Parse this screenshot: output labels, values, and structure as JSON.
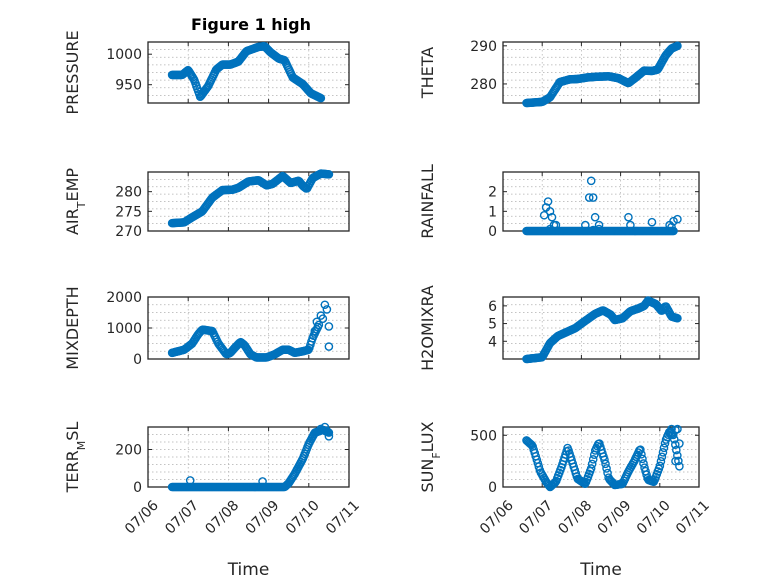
{
  "figure_title": "Figure 1 high",
  "x_tick_labels": [
    "07/06",
    "07/07",
    "07/08",
    "07/09",
    "07/10",
    "07/11"
  ],
  "xlabel": "Time",
  "marker_color": "#0072bd",
  "chart_data": [
    {
      "type": "scatter",
      "ylabel": "PRESSURE",
      "ylim": [
        920,
        1020
      ],
      "yticks": [
        950,
        1000
      ],
      "grid": true,
      "knots": [
        [
          6.6,
          966
        ],
        [
          6.85,
          966
        ],
        [
          7.0,
          974
        ],
        [
          7.15,
          958
        ],
        [
          7.3,
          930
        ],
        [
          7.5,
          948
        ],
        [
          7.7,
          975
        ],
        [
          7.85,
          983
        ],
        [
          8.05,
          983
        ],
        [
          8.25,
          988
        ],
        [
          8.45,
          1005
        ],
        [
          8.75,
          1012
        ],
        [
          8.9,
          1013
        ],
        [
          9.05,
          1003
        ],
        [
          9.25,
          993
        ],
        [
          9.4,
          990
        ],
        [
          9.6,
          962
        ],
        [
          9.85,
          951
        ],
        [
          10.05,
          936
        ],
        [
          10.3,
          928
        ]
      ],
      "n": 160
    },
    {
      "type": "scatter",
      "ylabel": "THETA",
      "ylim": [
        275,
        291
      ],
      "yticks": [
        280,
        290
      ],
      "grid": true,
      "knots": [
        [
          6.6,
          275
        ],
        [
          7.0,
          275.3
        ],
        [
          7.2,
          276.5
        ],
        [
          7.45,
          280.5
        ],
        [
          7.7,
          281.2
        ],
        [
          7.9,
          281.3
        ],
        [
          8.15,
          281.7
        ],
        [
          8.4,
          281.9
        ],
        [
          8.7,
          282
        ],
        [
          8.95,
          281.5
        ],
        [
          9.2,
          280.2
        ],
        [
          9.4,
          281.8
        ],
        [
          9.6,
          283.5
        ],
        [
          9.8,
          283.4
        ],
        [
          9.95,
          283.8
        ],
        [
          10.15,
          287.5
        ],
        [
          10.3,
          289.3
        ],
        [
          10.45,
          290
        ]
      ],
      "n": 160
    },
    {
      "type": "scatter",
      "ylabel": "AIR_TEMP",
      "ylim": [
        270,
        285
      ],
      "yticks": [
        270,
        275,
        280
      ],
      "grid": true,
      "knots": [
        [
          6.6,
          272
        ],
        [
          6.9,
          272.2
        ],
        [
          7.1,
          273.5
        ],
        [
          7.35,
          275
        ],
        [
          7.6,
          278.5
        ],
        [
          7.85,
          280.4
        ],
        [
          8.1,
          280.5
        ],
        [
          8.25,
          281
        ],
        [
          8.5,
          282.6
        ],
        [
          8.75,
          282.9
        ],
        [
          8.95,
          281.6
        ],
        [
          9.1,
          282
        ],
        [
          9.35,
          284
        ],
        [
          9.55,
          282.2
        ],
        [
          9.75,
          282.8
        ],
        [
          9.85,
          281.5
        ],
        [
          9.95,
          280.7
        ],
        [
          10.1,
          283.5
        ],
        [
          10.3,
          284.6
        ],
        [
          10.5,
          284.4
        ]
      ],
      "n": 160
    },
    {
      "type": "scatter",
      "ylabel": "RAINFALL",
      "ylim": [
        0,
        3
      ],
      "yticks": [
        0,
        1,
        2
      ],
      "grid": true,
      "knots": [
        [
          6.6,
          0
        ],
        [
          10.35,
          0
        ]
      ],
      "n": 150,
      "extra_points": [
        [
          7.05,
          0.8
        ],
        [
          7.1,
          1.2
        ],
        [
          7.15,
          1.5
        ],
        [
          7.2,
          1.0
        ],
        [
          7.25,
          0.7
        ],
        [
          7.3,
          0.3
        ],
        [
          7.35,
          0.3
        ],
        [
          7.2,
          0.1
        ],
        [
          8.1,
          0.3
        ],
        [
          8.2,
          1.7
        ],
        [
          8.25,
          2.55
        ],
        [
          8.3,
          1.7
        ],
        [
          8.35,
          0.7
        ],
        [
          8.45,
          0.3
        ],
        [
          8.45,
          0.1
        ],
        [
          8.3,
          0.05
        ],
        [
          9.2,
          0.7
        ],
        [
          9.25,
          0.3
        ],
        [
          9.8,
          0.45
        ],
        [
          10.25,
          0.3
        ],
        [
          10.35,
          0.5
        ],
        [
          10.45,
          0.6
        ],
        [
          10.3,
          0.2
        ]
      ]
    },
    {
      "type": "scatter",
      "ylabel": "MIXDEPTH",
      "ylim": [
        0,
        2000
      ],
      "yticks": [
        0,
        1000,
        2000
      ],
      "grid": true,
      "knots": [
        [
          6.6,
          200
        ],
        [
          6.9,
          300
        ],
        [
          7.1,
          500
        ],
        [
          7.25,
          800
        ],
        [
          7.35,
          950
        ],
        [
          7.6,
          900
        ],
        [
          7.75,
          500
        ],
        [
          7.95,
          150
        ],
        [
          8.05,
          200
        ],
        [
          8.15,
          350
        ],
        [
          8.3,
          550
        ],
        [
          8.4,
          450
        ],
        [
          8.55,
          150
        ],
        [
          8.7,
          50
        ],
        [
          8.95,
          50
        ],
        [
          9.15,
          150
        ],
        [
          9.35,
          300
        ],
        [
          9.5,
          300
        ],
        [
          9.65,
          200
        ],
        [
          9.85,
          250
        ],
        [
          10.0,
          300
        ],
        [
          10.1,
          700
        ],
        [
          10.25,
          1100
        ]
      ],
      "n": 140,
      "extra_points": [
        [
          10.15,
          900
        ],
        [
          10.2,
          1200
        ],
        [
          10.3,
          1400
        ],
        [
          10.35,
          1300
        ],
        [
          10.4,
          1750
        ],
        [
          10.45,
          1600
        ],
        [
          10.5,
          1050
        ],
        [
          10.5,
          400
        ]
      ]
    },
    {
      "type": "scatter",
      "ylabel": "H2OMIXRA",
      "ylim": [
        3,
        6.5
      ],
      "yticks": [
        4,
        5,
        6
      ],
      "grid": true,
      "knots": [
        [
          6.6,
          3.0
        ],
        [
          7.0,
          3.1
        ],
        [
          7.2,
          3.9
        ],
        [
          7.4,
          4.3
        ],
        [
          7.6,
          4.5
        ],
        [
          7.85,
          4.75
        ],
        [
          8.0,
          5.0
        ],
        [
          8.35,
          5.55
        ],
        [
          8.55,
          5.75
        ],
        [
          8.75,
          5.5
        ],
        [
          8.85,
          5.2
        ],
        [
          9.05,
          5.3
        ],
        [
          9.25,
          5.7
        ],
        [
          9.45,
          5.85
        ],
        [
          9.6,
          6.0
        ],
        [
          9.7,
          6.3
        ],
        [
          9.9,
          6.1
        ],
        [
          10.05,
          5.7
        ],
        [
          10.15,
          6.0
        ],
        [
          10.3,
          5.4
        ],
        [
          10.45,
          5.3
        ]
      ],
      "n": 160
    },
    {
      "type": "scatter",
      "ylabel": "TERR_MSL",
      "ylim": [
        0,
        320
      ],
      "yticks": [
        0,
        200
      ],
      "grid": true,
      "knots": [
        [
          6.6,
          0
        ],
        [
          9.4,
          0
        ],
        [
          9.5,
          20
        ],
        [
          9.65,
          70
        ],
        [
          9.85,
          150
        ],
        [
          10.0,
          230
        ],
        [
          10.15,
          290
        ],
        [
          10.35,
          305
        ],
        [
          10.5,
          290
        ]
      ],
      "n": 170,
      "extra_points": [
        [
          7.05,
          35
        ],
        [
          8.85,
          30
        ],
        [
          10.4,
          320
        ],
        [
          10.5,
          270
        ],
        [
          10.3,
          310
        ],
        [
          10.45,
          300
        ]
      ]
    },
    {
      "type": "scatter",
      "ylabel": "SUN_FLUX",
      "ylim": [
        0,
        580
      ],
      "yticks": [
        0,
        500
      ],
      "grid": true,
      "knots": [
        [
          6.6,
          450
        ],
        [
          6.75,
          400
        ],
        [
          6.85,
          280
        ],
        [
          6.95,
          150
        ],
        [
          7.1,
          50
        ],
        [
          7.2,
          0
        ],
        [
          7.35,
          50
        ],
        [
          7.5,
          200
        ],
        [
          7.65,
          380
        ],
        [
          7.8,
          200
        ],
        [
          7.9,
          80
        ],
        [
          8.1,
          30
        ],
        [
          8.25,
          180
        ],
        [
          8.35,
          350
        ],
        [
          8.45,
          430
        ],
        [
          8.6,
          250
        ],
        [
          8.7,
          80
        ],
        [
          8.85,
          20
        ],
        [
          9.05,
          30
        ],
        [
          9.2,
          150
        ],
        [
          9.35,
          250
        ],
        [
          9.5,
          370
        ],
        [
          9.6,
          200
        ],
        [
          9.7,
          70
        ],
        [
          9.85,
          50
        ],
        [
          10.0,
          200
        ],
        [
          10.15,
          450
        ],
        [
          10.25,
          540
        ],
        [
          10.35,
          500
        ],
        [
          10.45,
          300
        ],
        [
          10.5,
          200
        ]
      ],
      "n": 150,
      "extra_points": [
        [
          10.3,
          560
        ],
        [
          10.4,
          550
        ],
        [
          10.45,
          560
        ],
        [
          10.5,
          420
        ],
        [
          10.4,
          250
        ]
      ]
    }
  ]
}
